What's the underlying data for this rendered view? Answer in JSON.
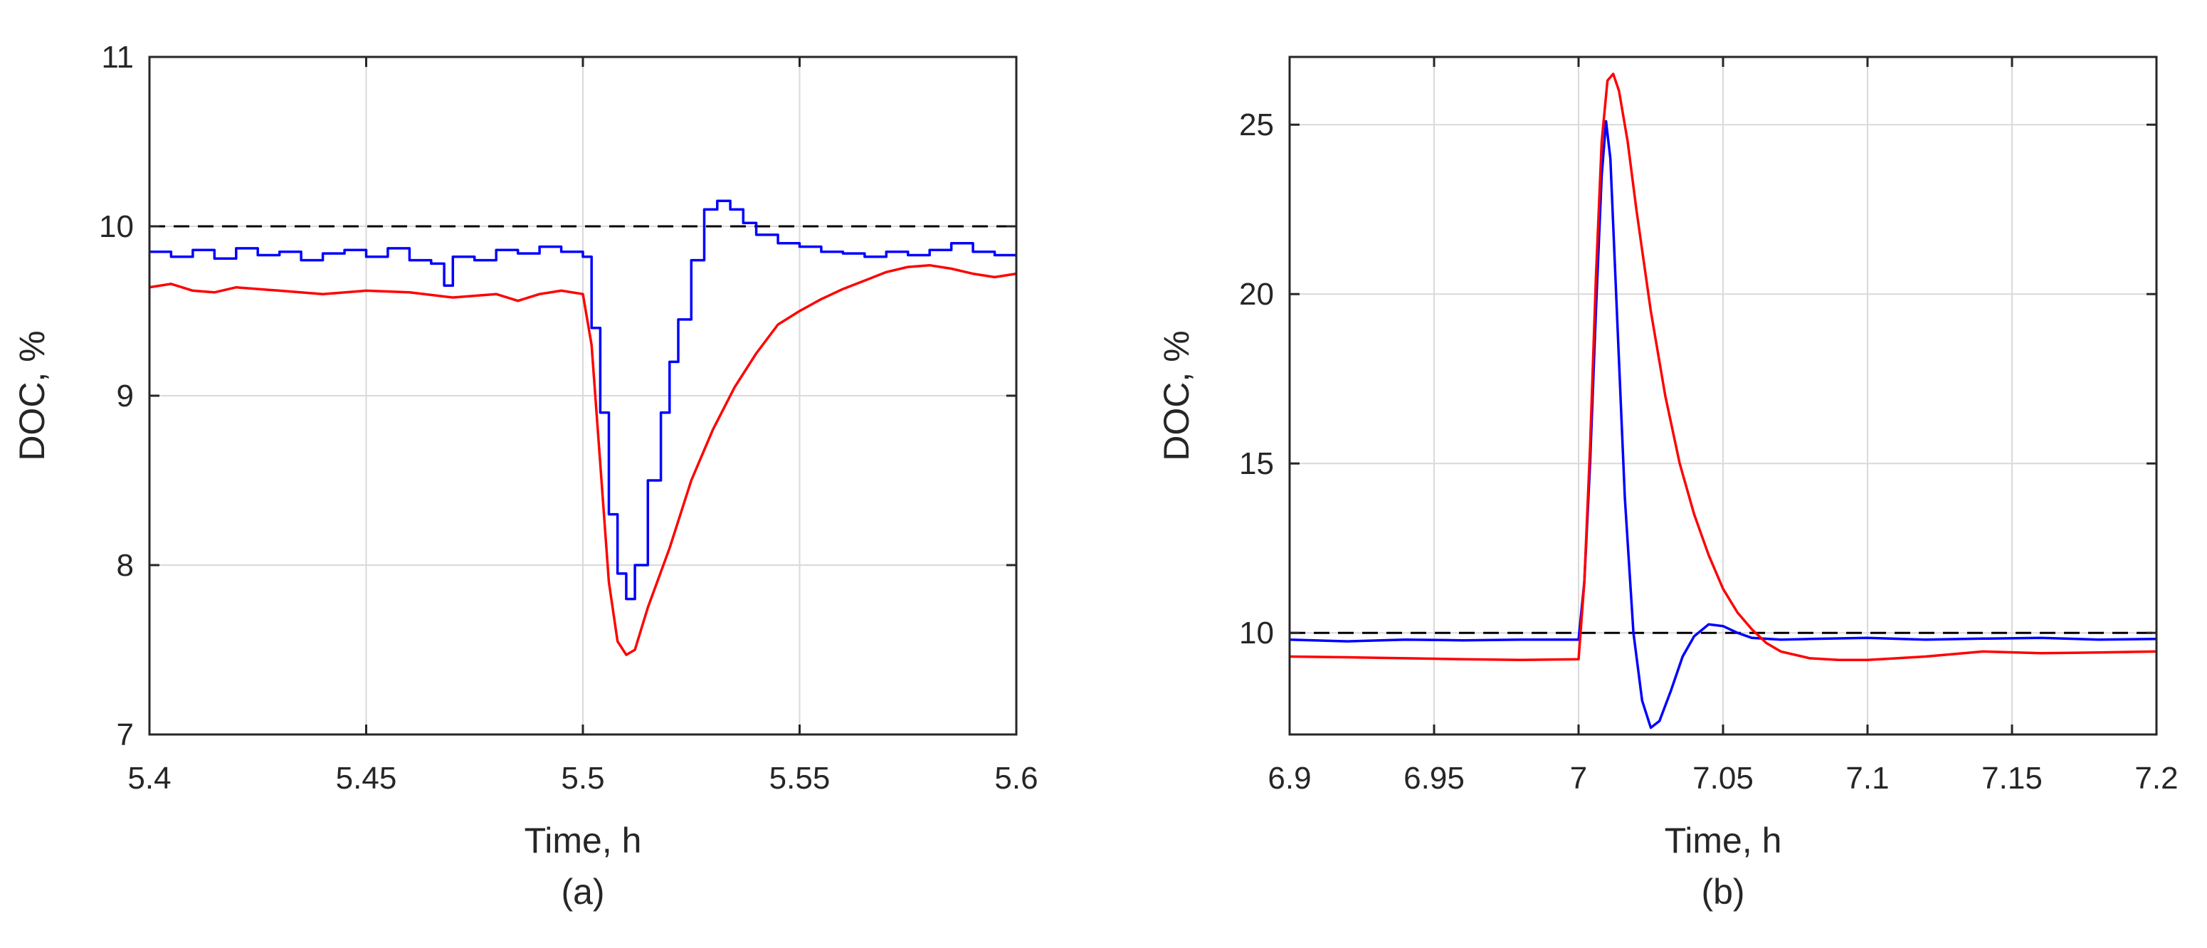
{
  "chart_data": [
    {
      "type": "line",
      "caption": "(a)",
      "xlabel": "Time, h",
      "ylabel": "DOC, %",
      "xlim": [
        5.4,
        5.6
      ],
      "ylim": [
        7,
        11
      ],
      "xticks": [
        5.4,
        5.45,
        5.5,
        5.55,
        5.6
      ],
      "xtick_labels": [
        "5.4",
        "5.45",
        "5.5",
        "5.55",
        "5.6"
      ],
      "yticks": [
        7,
        8,
        9,
        10,
        11
      ],
      "ytick_labels": [
        "7",
        "8",
        "9",
        "10",
        "11"
      ],
      "grid": true,
      "reference": {
        "y": 10,
        "style": "dashed",
        "color": "#000000"
      },
      "series": [
        {
          "color": "#0000ff",
          "style": "step",
          "x": [
            5.4,
            5.405,
            5.41,
            5.415,
            5.42,
            5.425,
            5.43,
            5.435,
            5.44,
            5.445,
            5.45,
            5.455,
            5.46,
            5.465,
            5.468,
            5.47,
            5.475,
            5.48,
            5.485,
            5.49,
            5.495,
            5.5,
            5.502,
            5.504,
            5.506,
            5.508,
            5.51,
            5.512,
            5.515,
            5.518,
            5.52,
            5.522,
            5.525,
            5.528,
            5.531,
            5.534,
            5.537,
            5.54,
            5.545,
            5.55,
            5.555,
            5.56,
            5.565,
            5.57,
            5.575,
            5.58,
            5.585,
            5.59,
            5.595,
            5.6
          ],
          "y": [
            9.85,
            9.82,
            9.86,
            9.81,
            9.87,
            9.83,
            9.85,
            9.8,
            9.84,
            9.86,
            9.82,
            9.87,
            9.8,
            9.78,
            9.65,
            9.82,
            9.8,
            9.86,
            9.84,
            9.88,
            9.85,
            9.82,
            9.4,
            8.9,
            8.3,
            7.95,
            7.8,
            8.0,
            8.5,
            8.9,
            9.2,
            9.45,
            9.8,
            10.1,
            10.15,
            10.1,
            10.02,
            9.95,
            9.9,
            9.88,
            9.85,
            9.84,
            9.82,
            9.85,
            9.83,
            9.86,
            9.9,
            9.85,
            9.83,
            9.82
          ]
        },
        {
          "color": "#ff0000",
          "style": "line",
          "x": [
            5.4,
            5.405,
            5.41,
            5.415,
            5.42,
            5.43,
            5.44,
            5.45,
            5.46,
            5.47,
            5.48,
            5.485,
            5.49,
            5.495,
            5.5,
            5.502,
            5.504,
            5.506,
            5.508,
            5.51,
            5.512,
            5.515,
            5.52,
            5.525,
            5.53,
            5.535,
            5.54,
            5.545,
            5.55,
            5.555,
            5.56,
            5.565,
            5.57,
            5.575,
            5.58,
            5.585,
            5.59,
            5.595,
            5.6
          ],
          "y": [
            9.64,
            9.66,
            9.62,
            9.61,
            9.64,
            9.62,
            9.6,
            9.62,
            9.61,
            9.58,
            9.6,
            9.56,
            9.6,
            9.62,
            9.6,
            9.3,
            8.6,
            7.9,
            7.55,
            7.47,
            7.5,
            7.75,
            8.1,
            8.5,
            8.8,
            9.05,
            9.25,
            9.42,
            9.5,
            9.57,
            9.63,
            9.68,
            9.73,
            9.76,
            9.77,
            9.75,
            9.72,
            9.7,
            9.72
          ]
        }
      ]
    },
    {
      "type": "line",
      "caption": "(b)",
      "xlabel": "Time, h",
      "ylabel": "DOC, %",
      "xlim": [
        6.9,
        7.2
      ],
      "ylim": [
        7,
        27
      ],
      "xticks": [
        6.9,
        6.95,
        7.0,
        7.05,
        7.1,
        7.15,
        7.2
      ],
      "xtick_labels": [
        "6.9",
        "6.95",
        "7",
        "7.05",
        "7.1",
        "7.15",
        "7.2"
      ],
      "yticks": [
        10,
        15,
        20,
        25
      ],
      "ytick_labels": [
        "10",
        "15",
        "20",
        "25"
      ],
      "grid": true,
      "reference": {
        "y": 10,
        "style": "dashed",
        "color": "#000000"
      },
      "series": [
        {
          "color": "#0000ff",
          "style": "line",
          "x": [
            6.9,
            6.92,
            6.94,
            6.96,
            6.98,
            7.0,
            7.002,
            7.004,
            7.006,
            7.008,
            7.0095,
            7.011,
            7.013,
            7.016,
            7.019,
            7.022,
            7.025,
            7.028,
            7.032,
            7.036,
            7.04,
            7.045,
            7.05,
            7.055,
            7.06,
            7.07,
            7.08,
            7.1,
            7.12,
            7.14,
            7.16,
            7.18,
            7.2
          ],
          "y": [
            9.8,
            9.75,
            9.8,
            9.78,
            9.8,
            9.8,
            11.5,
            15.0,
            19.5,
            23.5,
            25.1,
            24.0,
            20.0,
            14.0,
            10.0,
            8.0,
            7.2,
            7.4,
            8.3,
            9.3,
            9.9,
            10.25,
            10.2,
            10.0,
            9.85,
            9.8,
            9.82,
            9.85,
            9.8,
            9.83,
            9.85,
            9.8,
            9.82
          ]
        },
        {
          "color": "#ff0000",
          "style": "line",
          "x": [
            6.9,
            6.92,
            6.94,
            6.96,
            6.98,
            7.0,
            7.002,
            7.004,
            7.006,
            7.008,
            7.01,
            7.012,
            7.014,
            7.017,
            7.02,
            7.025,
            7.03,
            7.035,
            7.04,
            7.045,
            7.05,
            7.055,
            7.06,
            7.065,
            7.07,
            7.08,
            7.09,
            7.1,
            7.12,
            7.14,
            7.16,
            7.18,
            7.2
          ],
          "y": [
            9.3,
            9.28,
            9.25,
            9.22,
            9.2,
            9.22,
            11.5,
            15.5,
            20.5,
            24.5,
            26.3,
            26.5,
            26.0,
            24.5,
            22.5,
            19.5,
            17.0,
            15.0,
            13.5,
            12.3,
            11.3,
            10.6,
            10.1,
            9.7,
            9.45,
            9.25,
            9.2,
            9.2,
            9.3,
            9.45,
            9.4,
            9.42,
            9.45
          ]
        }
      ]
    }
  ]
}
